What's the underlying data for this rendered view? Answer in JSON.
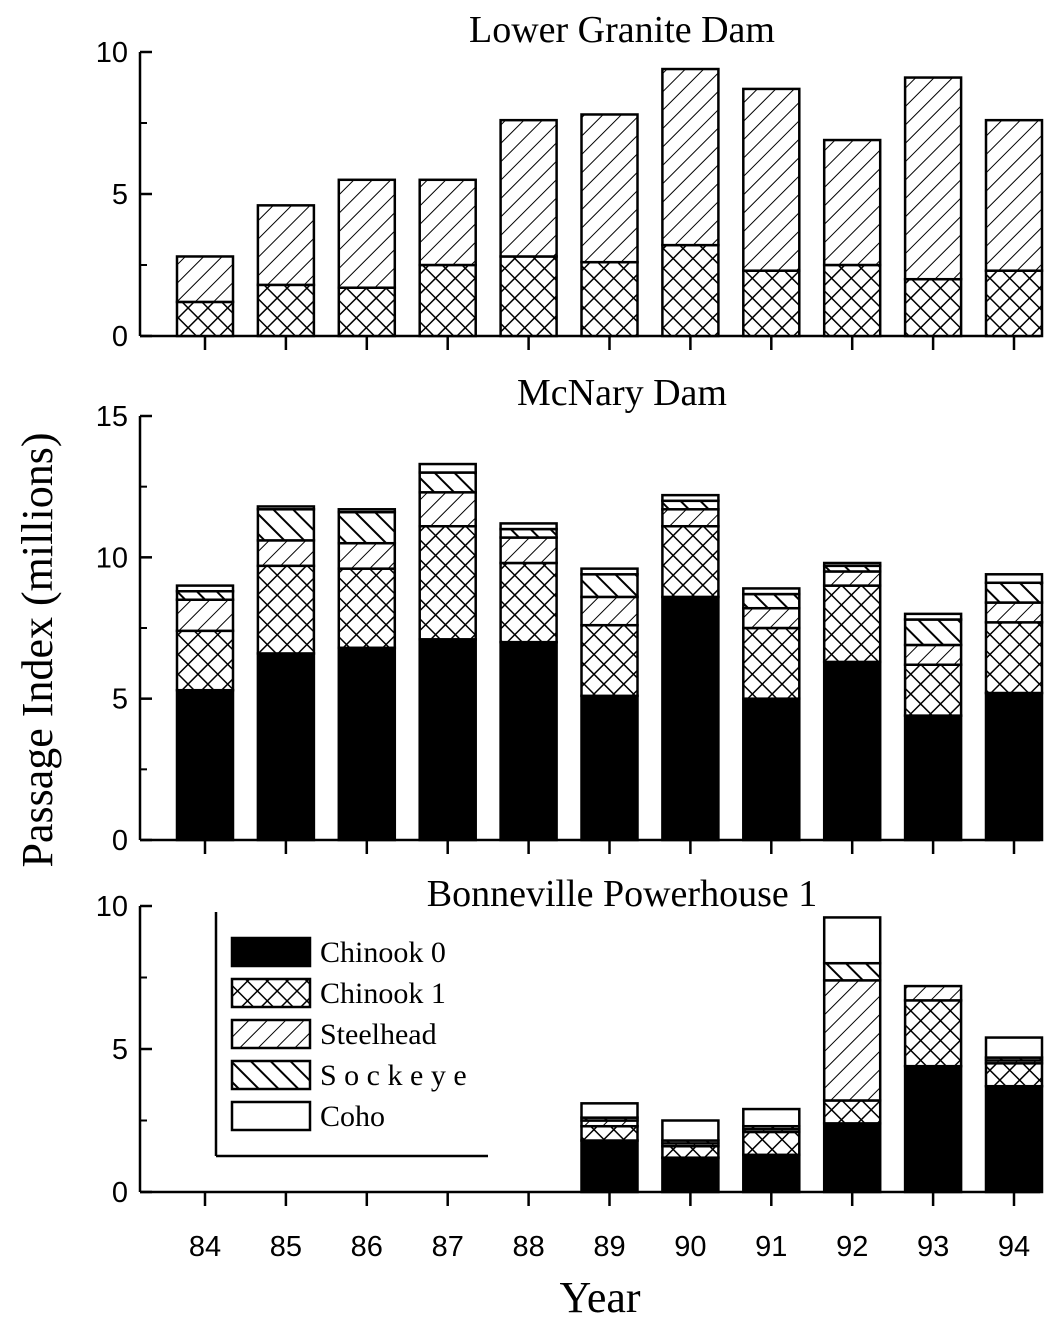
{
  "chart_data": {
    "type": "bar",
    "stacked": true,
    "ylabel": "Passage Index (millions)",
    "xlabel": "Year",
    "categories": [
      "84",
      "85",
      "86",
      "87",
      "88",
      "89",
      "90",
      "91",
      "92",
      "93",
      "94"
    ],
    "colors": {
      "Chinook 0": "#000000",
      "Chinook 1": "crosshatch",
      "Steelhead": "forward-diagonal",
      "Sockeye": "backward-diagonal",
      "Coho": "#ffffff"
    },
    "legend": {
      "position": "upper-left of bottom panel",
      "entries": [
        "Chinook 0",
        "Chinook 1",
        "Steelhead",
        "Sockeye",
        "Coho"
      ],
      "display_labels": [
        "Chinook 0",
        "Chinook 1",
        "Steelhead",
        "S o c k e y e",
        "Coho"
      ]
    },
    "panels": [
      {
        "title": "Lower Granite Dam",
        "ylim": [
          0,
          10
        ],
        "yticks": [
          0,
          5,
          10
        ],
        "series": [
          {
            "name": "Chinook 1",
            "values": [
              1.2,
              1.8,
              1.7,
              2.5,
              2.8,
              2.6,
              3.2,
              2.3,
              2.5,
              2.0,
              2.3
            ]
          },
          {
            "name": "Steelhead",
            "values": [
              1.6,
              2.8,
              3.8,
              3.0,
              4.8,
              5.2,
              6.2,
              6.4,
              4.4,
              7.1,
              5.3
            ]
          }
        ]
      },
      {
        "title": "McNary Dam",
        "ylim": [
          0,
          15
        ],
        "yticks": [
          0,
          5,
          10,
          15
        ],
        "series": [
          {
            "name": "Chinook 0",
            "values": [
              5.3,
              6.6,
              6.8,
              7.1,
              7.0,
              5.1,
              8.6,
              5.0,
              6.3,
              4.4,
              5.2
            ]
          },
          {
            "name": "Chinook 1",
            "values": [
              2.1,
              3.1,
              2.8,
              4.0,
              2.8,
              2.5,
              2.5,
              2.5,
              2.7,
              1.8,
              2.5
            ]
          },
          {
            "name": "Steelhead",
            "values": [
              1.1,
              0.9,
              0.9,
              1.2,
              0.9,
              1.0,
              0.6,
              0.7,
              0.5,
              0.7,
              0.7
            ]
          },
          {
            "name": "Sockeye",
            "values": [
              0.3,
              1.1,
              1.1,
              0.7,
              0.3,
              0.8,
              0.3,
              0.5,
              0.2,
              0.9,
              0.7
            ]
          },
          {
            "name": "Coho",
            "values": [
              0.2,
              0.1,
              0.1,
              0.3,
              0.2,
              0.2,
              0.2,
              0.2,
              0.1,
              0.2,
              0.3
            ]
          }
        ]
      },
      {
        "title": "Bonneville Powerhouse 1",
        "ylim": [
          0,
          10
        ],
        "yticks": [
          0,
          5,
          10
        ],
        "series": [
          {
            "name": "Chinook 0",
            "values": [
              null,
              null,
              null,
              null,
              null,
              1.8,
              1.2,
              1.3,
              2.4,
              4.4,
              3.7
            ]
          },
          {
            "name": "Chinook 1",
            "values": [
              null,
              null,
              null,
              null,
              null,
              0.5,
              0.4,
              0.8,
              0.8,
              2.3,
              0.8
            ]
          },
          {
            "name": "Steelhead",
            "values": [
              null,
              null,
              null,
              null,
              null,
              0.2,
              0.1,
              0.1,
              4.2,
              0.5,
              0.1
            ]
          },
          {
            "name": "Sockeye",
            "values": [
              null,
              null,
              null,
              null,
              null,
              0.1,
              0.1,
              0.1,
              0.6,
              0.0,
              0.1
            ]
          },
          {
            "name": "Coho",
            "values": [
              null,
              null,
              null,
              null,
              null,
              0.5,
              0.7,
              0.6,
              1.6,
              0.0,
              0.7
            ]
          }
        ]
      }
    ]
  }
}
